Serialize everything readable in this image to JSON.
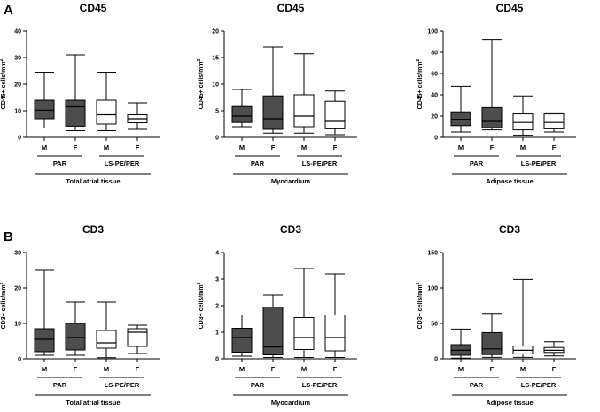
{
  "panels": [
    {
      "label": "A"
    },
    {
      "label": "B"
    }
  ],
  "colors": {
    "par_fill": "#4d4d4d",
    "ls_fill": "#ffffff",
    "stroke": "#000000"
  },
  "chart_data": [
    {
      "type": "box",
      "panel": "A",
      "title": "CD45",
      "ylabel": "CD45+ cells/mm2",
      "ylim": [
        0,
        40
      ],
      "yticks": [
        0,
        10,
        20,
        30,
        40
      ],
      "categories": [
        "M",
        "F",
        "M",
        "F"
      ],
      "groups": [
        "PAR",
        "LS-PE/PER"
      ],
      "tissue": "Total atrial tissue",
      "boxes": [
        {
          "group": "PAR",
          "sex": "M",
          "min": 3.5,
          "q1": 7,
          "median": 10.2,
          "q3": 14,
          "max": 24.5
        },
        {
          "group": "PAR",
          "sex": "F",
          "min": 2.5,
          "q1": 4.2,
          "median": 11.5,
          "q3": 14,
          "max": 31
        },
        {
          "group": "LS-PE/PER",
          "sex": "M",
          "min": 2.5,
          "q1": 5,
          "median": 8.5,
          "q3": 14,
          "max": 24.5
        },
        {
          "group": "LS-PE/PER",
          "sex": "F",
          "min": 3,
          "q1": 5.5,
          "median": 7,
          "q3": 8.5,
          "max": 13
        }
      ]
    },
    {
      "type": "box",
      "panel": "A",
      "title": "CD45",
      "ylabel": "CD45+ cells/mm2",
      "ylim": [
        0,
        20
      ],
      "yticks": [
        0,
        5,
        10,
        15,
        20
      ],
      "categories": [
        "M",
        "F",
        "M",
        "F"
      ],
      "groups": [
        "PAR",
        "LS-PE/PER"
      ],
      "tissue": "Myocardium",
      "boxes": [
        {
          "group": "PAR",
          "sex": "M",
          "min": 2,
          "q1": 2.8,
          "median": 4,
          "q3": 5.8,
          "max": 9
        },
        {
          "group": "PAR",
          "sex": "F",
          "min": 0.8,
          "q1": 1.5,
          "median": 3.5,
          "q3": 7.8,
          "max": 17
        },
        {
          "group": "LS-PE/PER",
          "sex": "M",
          "min": 0.8,
          "q1": 2,
          "median": 4,
          "q3": 8,
          "max": 15.7
        },
        {
          "group": "LS-PE/PER",
          "sex": "F",
          "min": 0.5,
          "q1": 1.6,
          "median": 3,
          "q3": 6.8,
          "max": 8.7
        }
      ]
    },
    {
      "type": "box",
      "panel": "A",
      "title": "CD45",
      "ylabel": "CD45+ cells/mm2",
      "ylim": [
        0,
        100
      ],
      "yticks": [
        0,
        20,
        40,
        60,
        80,
        100
      ],
      "categories": [
        "M",
        "F",
        "M",
        "F"
      ],
      "groups": [
        "PAR",
        "LS-PE/PER"
      ],
      "tissue": "Adipose tissue",
      "boxes": [
        {
          "group": "PAR",
          "sex": "M",
          "min": 5,
          "q1": 11,
          "median": 17,
          "q3": 24,
          "max": 48
        },
        {
          "group": "PAR",
          "sex": "F",
          "min": 7,
          "q1": 9,
          "median": 15,
          "q3": 28,
          "max": 92
        },
        {
          "group": "LS-PE/PER",
          "sex": "M",
          "min": 2,
          "q1": 7,
          "median": 14,
          "q3": 22,
          "max": 39
        },
        {
          "group": "LS-PE/PER",
          "sex": "F",
          "min": 5,
          "q1": 8,
          "median": 14,
          "q3": 22,
          "max": 23
        }
      ]
    },
    {
      "type": "box",
      "panel": "B",
      "title": "CD3",
      "ylabel": "CD3+ cells/mm2",
      "ylim": [
        0,
        30
      ],
      "yticks": [
        0,
        10,
        20,
        30
      ],
      "categories": [
        "M",
        "F",
        "M",
        "F"
      ],
      "groups": [
        "PAR",
        "LS-PE/PER"
      ],
      "tissue": "Total atrial tissue",
      "boxes": [
        {
          "group": "PAR",
          "sex": "M",
          "min": 1,
          "q1": 2,
          "median": 5.5,
          "q3": 8.5,
          "max": 25
        },
        {
          "group": "PAR",
          "sex": "F",
          "min": 1,
          "q1": 2.5,
          "median": 6,
          "q3": 10,
          "max": 16
        },
        {
          "group": "LS-PE/PER",
          "sex": "M",
          "min": 0.3,
          "q1": 3,
          "median": 4.5,
          "q3": 8,
          "max": 16
        },
        {
          "group": "LS-PE/PER",
          "sex": "F",
          "min": 1.5,
          "q1": 3.5,
          "median": 7.5,
          "q3": 8.5,
          "max": 9.5
        }
      ]
    },
    {
      "type": "box",
      "panel": "B",
      "title": "CD3",
      "ylabel": "CD3+ cells/mm2",
      "ylim": [
        0,
        4
      ],
      "yticks": [
        0,
        1,
        2,
        3,
        4
      ],
      "categories": [
        "M",
        "F",
        "M",
        "F"
      ],
      "groups": [
        "PAR",
        "LS-PE/PER"
      ],
      "tissue": "Myocardium",
      "boxes": [
        {
          "group": "PAR",
          "sex": "M",
          "min": 0.1,
          "q1": 0.25,
          "median": 0.8,
          "q3": 1.15,
          "max": 1.65
        },
        {
          "group": "PAR",
          "sex": "F",
          "min": 0.05,
          "q1": 0.15,
          "median": 0.45,
          "q3": 1.95,
          "max": 2.4
        },
        {
          "group": "LS-PE/PER",
          "sex": "M",
          "min": 0.05,
          "q1": 0.35,
          "median": 0.8,
          "q3": 1.55,
          "max": 3.4
        },
        {
          "group": "LS-PE/PER",
          "sex": "F",
          "min": 0.05,
          "q1": 0.3,
          "median": 0.8,
          "q3": 1.65,
          "max": 3.2
        }
      ]
    },
    {
      "type": "box",
      "panel": "B",
      "title": "CD3",
      "ylabel": "CD3+ cells/mm2",
      "ylim": [
        0,
        150
      ],
      "yticks": [
        0,
        50,
        100,
        150
      ],
      "categories": [
        "M",
        "F",
        "M",
        "F"
      ],
      "groups": [
        "PAR",
        "LS-PE/PER"
      ],
      "tissue": "Adipose tissue",
      "boxes": [
        {
          "group": "PAR",
          "sex": "M",
          "min": 1,
          "q1": 5,
          "median": 12,
          "q3": 20,
          "max": 42
        },
        {
          "group": "PAR",
          "sex": "F",
          "min": 2,
          "q1": 6,
          "median": 14,
          "q3": 37,
          "max": 64
        },
        {
          "group": "LS-PE/PER",
          "sex": "M",
          "min": 2,
          "q1": 7,
          "median": 12,
          "q3": 18,
          "max": 112
        },
        {
          "group": "LS-PE/PER",
          "sex": "F",
          "min": 4,
          "q1": 9,
          "median": 12,
          "q3": 16,
          "max": 24
        }
      ]
    }
  ]
}
